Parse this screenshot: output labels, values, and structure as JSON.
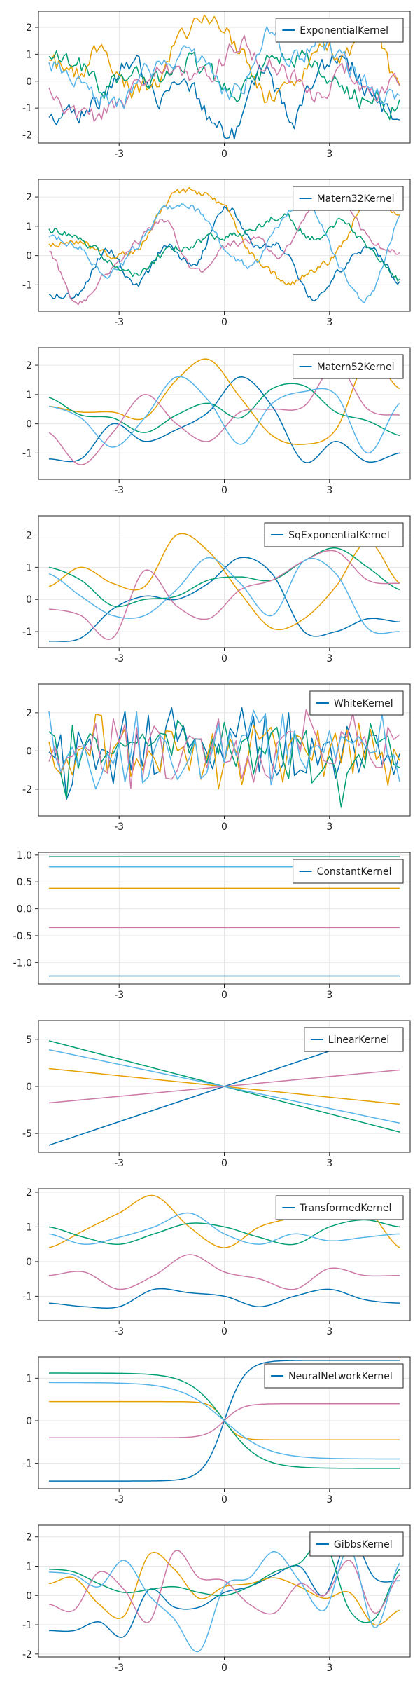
{
  "colors": [
    "#0072B2",
    "#E69F00",
    "#009E73",
    "#CC79A7",
    "#56B4E9"
  ],
  "chart_data": [
    {
      "type": "line",
      "legend": [
        "ExponentialKernel"
      ],
      "legend_position": "top-right",
      "grid": true,
      "xlim": [
        -5.3,
        5.3
      ],
      "ylim": [
        -2.3,
        2.6
      ],
      "xticks": [
        -3,
        0,
        3
      ],
      "yticks": [
        -2,
        -1,
        0,
        1,
        2
      ],
      "yticklabels": [
        "-2",
        "-1",
        "0",
        "1",
        "2"
      ],
      "kind": "rough",
      "x_range": [
        -5,
        5
      ],
      "series": [
        {
          "color": "#0072B2",
          "anchors": [
            -1.3,
            -1.2,
            -0.5,
            0.8,
            -0.6,
            0.4,
            -1.5,
            -1.9,
            0.3,
            -1.5,
            0.4,
            0.7,
            -0.5,
            -1.2
          ],
          "noise": 0.35
        },
        {
          "color": "#E69F00",
          "anchors": [
            0.8,
            0.3,
            1.2,
            -0.2,
            0.1,
            1.8,
            2.2,
            1.2,
            -0.6,
            0.2,
            0.9,
            1.1,
            1.8,
            -0.6
          ],
          "noise": 0.35
        },
        {
          "color": "#009E73",
          "anchors": [
            0.9,
            0.6,
            -0.3,
            0.4,
            -0.2,
            0.8,
            0.2,
            -0.6,
            0.5,
            1.1,
            0.3,
            -0.4,
            -0.8,
            -1.0
          ],
          "noise": 0.35
        },
        {
          "color": "#CC79A7",
          "anchors": [
            -0.3,
            -1.5,
            -1.2,
            -0.5,
            0.4,
            -0.1,
            0.3,
            1.2,
            0.8,
            0.0,
            -0.5,
            0.4,
            -0.6,
            0.0
          ],
          "noise": 0.35
        },
        {
          "color": "#56B4E9",
          "anchors": [
            0.6,
            -0.2,
            -0.8,
            -0.5,
            0.6,
            1.0,
            0.3,
            -0.3,
            1.6,
            0.8,
            1.2,
            0.5,
            -0.2,
            -0.7
          ],
          "noise": 0.35
        }
      ]
    },
    {
      "type": "line",
      "legend": [
        "Matern32Kernel"
      ],
      "legend_position": "top-right",
      "grid": true,
      "xlim": [
        -5.3,
        5.3
      ],
      "ylim": [
        -1.9,
        2.6
      ],
      "xticks": [
        -3,
        0,
        3
      ],
      "yticks": [
        -1,
        0,
        1,
        2
      ],
      "yticklabels": [
        "-1",
        "0",
        "1",
        "2"
      ],
      "kind": "medium",
      "x_range": [
        -5,
        5
      ],
      "series": [
        {
          "color": "#0072B2",
          "anchors": [
            -1.3,
            -1.3,
            0.2,
            -1.0,
            0.3,
            -0.3,
            1.7,
            0.4,
            0.2,
            -1.5,
            -0.4,
            0.2,
            -0.9
          ],
          "noise": 0.12
        },
        {
          "color": "#E69F00",
          "anchors": [
            0.4,
            0.5,
            0.0,
            0.2,
            1.8,
            2.2,
            1.6,
            0.0,
            -0.8,
            -0.6,
            0.3,
            2.2,
            1.3
          ],
          "noise": 0.12
        },
        {
          "color": "#009E73",
          "anchors": [
            0.9,
            0.6,
            -0.1,
            -0.6,
            0.1,
            0.4,
            0.7,
            0.9,
            1.4,
            0.6,
            1.2,
            0.2,
            -0.8
          ],
          "noise": 0.12
        },
        {
          "color": "#CC79A7",
          "anchors": [
            0.1,
            -1.6,
            -0.5,
            0.4,
            1.1,
            -0.6,
            0.3,
            0.5,
            0.1,
            1.8,
            2.0,
            0.5,
            0.1
          ],
          "noise": 0.12
        },
        {
          "color": "#56B4E9",
          "anchors": [
            0.6,
            0.3,
            -0.6,
            0.3,
            1.6,
            1.6,
            0.3,
            -0.3,
            1.3,
            1.6,
            -0.5,
            -1.4,
            1.3
          ],
          "noise": 0.12
        }
      ]
    },
    {
      "type": "line",
      "legend": [
        "Matern52Kernel"
      ],
      "legend_position": "top-right",
      "grid": true,
      "xlim": [
        -5.3,
        5.3
      ],
      "ylim": [
        -1.9,
        2.6
      ],
      "xticks": [
        -3,
        0,
        3
      ],
      "yticks": [
        -1,
        0,
        1,
        2
      ],
      "yticklabels": [
        "-1",
        "0",
        "1",
        "2"
      ],
      "kind": "smooth",
      "x_range": [
        -5,
        5
      ],
      "series": [
        {
          "color": "#0072B2",
          "anchors": [
            -1.2,
            -1.2,
            0.0,
            -0.6,
            -0.2,
            0.4,
            1.6,
            0.6,
            -1.3,
            -0.6,
            -1.3,
            -1.0
          ],
          "noise": 0.0
        },
        {
          "color": "#E69F00",
          "anchors": [
            0.6,
            0.4,
            0.4,
            0.2,
            1.5,
            2.2,
            0.9,
            -0.4,
            -0.7,
            -0.2,
            2.2,
            1.2
          ],
          "noise": 0.0
        },
        {
          "color": "#009E73",
          "anchors": [
            0.9,
            0.3,
            0.2,
            -0.3,
            0.3,
            0.7,
            0.2,
            1.2,
            1.3,
            0.4,
            0.1,
            -0.4
          ],
          "noise": 0.0
        },
        {
          "color": "#CC79A7",
          "anchors": [
            -0.3,
            -1.4,
            -0.3,
            1.0,
            0.0,
            -0.6,
            0.4,
            0.5,
            0.6,
            2.0,
            0.5,
            0.3
          ],
          "noise": 0.0
        },
        {
          "color": "#56B4E9",
          "anchors": [
            0.6,
            0.2,
            -0.8,
            0.2,
            1.6,
            0.8,
            -0.7,
            0.7,
            1.1,
            1.0,
            -1.0,
            0.7
          ],
          "noise": 0.0
        }
      ]
    },
    {
      "type": "line",
      "legend": [
        "SqExponentialKernel"
      ],
      "legend_position": "top-right",
      "grid": true,
      "xlim": [
        -5.3,
        5.3
      ],
      "ylim": [
        -1.5,
        2.6
      ],
      "xticks": [
        -3,
        0,
        3
      ],
      "yticks": [
        -1,
        0,
        1,
        2
      ],
      "yticklabels": [
        "-1",
        "0",
        "1",
        "2"
      ],
      "kind": "smooth",
      "x_range": [
        -5,
        5
      ],
      "series": [
        {
          "color": "#0072B2",
          "anchors": [
            -1.3,
            -1.2,
            -0.3,
            0.1,
            0.0,
            0.5,
            1.3,
            0.8,
            -1.0,
            -1.0,
            -0.6,
            -0.7
          ],
          "noise": 0.0
        },
        {
          "color": "#E69F00",
          "anchors": [
            0.4,
            1.0,
            0.5,
            0.4,
            2.0,
            1.5,
            0.2,
            -0.9,
            -0.6,
            0.4,
            1.8,
            0.5
          ],
          "noise": 0.0
        },
        {
          "color": "#009E73",
          "anchors": [
            1.0,
            0.6,
            -0.2,
            0.0,
            0.1,
            0.6,
            0.7,
            0.6,
            1.2,
            1.6,
            1.0,
            0.3
          ],
          "noise": 0.0
        },
        {
          "color": "#CC79A7",
          "anchors": [
            -0.3,
            -0.5,
            -1.2,
            0.9,
            -0.2,
            -0.6,
            0.3,
            0.6,
            1.2,
            1.5,
            0.6,
            0.5
          ],
          "noise": 0.0
        },
        {
          "color": "#56B4E9",
          "anchors": [
            0.8,
            0.1,
            -0.5,
            -0.5,
            0.3,
            1.3,
            0.5,
            -0.5,
            1.2,
            0.8,
            -0.9,
            -1.0
          ],
          "noise": 0.0
        }
      ]
    },
    {
      "type": "line",
      "legend": [
        "WhiteKernel"
      ],
      "legend_position": "top-right",
      "grid": true,
      "xlim": [
        -5.3,
        5.3
      ],
      "ylim": [
        -3.4,
        3.5
      ],
      "xticks": [
        -3,
        0,
        3
      ],
      "yticks": [
        -2,
        0,
        2
      ],
      "yticklabels": [
        "-2",
        "0",
        "2"
      ],
      "kind": "white",
      "x_range": [
        -5,
        5
      ],
      "points": 60,
      "series": [
        {
          "color": "#0072B2",
          "amplitude": 1.0
        },
        {
          "color": "#E69F00",
          "amplitude": 1.0
        },
        {
          "color": "#009E73",
          "amplitude": 1.0
        },
        {
          "color": "#CC79A7",
          "amplitude": 1.0
        },
        {
          "color": "#56B4E9",
          "amplitude": 1.0
        }
      ]
    },
    {
      "type": "line",
      "legend": [
        "ConstantKernel"
      ],
      "legend_position": "top-right",
      "grid": true,
      "xlim": [
        -5.3,
        5.3
      ],
      "ylim": [
        -1.4,
        1.05
      ],
      "xticks": [
        -3,
        0,
        3
      ],
      "yticks": [
        -1.0,
        -0.5,
        0.0,
        0.5,
        1.0
      ],
      "yticklabels": [
        "-1.0",
        "-0.5",
        "0.0",
        "0.5",
        "1.0"
      ],
      "kind": "constant",
      "x_range": [
        -5,
        5
      ],
      "series": [
        {
          "color": "#0072B2",
          "value": -1.25
        },
        {
          "color": "#E69F00",
          "value": 0.38
        },
        {
          "color": "#009E73",
          "value": 0.97
        },
        {
          "color": "#CC79A7",
          "value": -0.35
        },
        {
          "color": "#56B4E9",
          "value": 0.78
        }
      ]
    },
    {
      "type": "line",
      "legend": [
        "LinearKernel"
      ],
      "legend_position": "top-right",
      "grid": true,
      "xlim": [
        -5.3,
        5.3
      ],
      "ylim": [
        -7.0,
        7.0
      ],
      "xticks": [
        -3,
        0,
        3
      ],
      "yticks": [
        -5,
        0,
        5
      ],
      "yticklabels": [
        "-5",
        "0",
        "5"
      ],
      "kind": "linear",
      "x_range": [
        -5,
        5
      ],
      "series": [
        {
          "color": "#0072B2",
          "slope": 1.25
        },
        {
          "color": "#E69F00",
          "slope": -0.38
        },
        {
          "color": "#009E73",
          "slope": -0.97
        },
        {
          "color": "#CC79A7",
          "slope": 0.35
        },
        {
          "color": "#56B4E9",
          "slope": -0.78
        }
      ]
    },
    {
      "type": "line",
      "legend": [
        "TransformedKernel"
      ],
      "legend_position": "top-right",
      "grid": true,
      "xlim": [
        -5.3,
        5.3
      ],
      "ylim": [
        -1.7,
        2.1
      ],
      "xticks": [
        -3,
        0,
        3
      ],
      "yticks": [
        -1,
        0,
        1,
        2
      ],
      "yticklabels": [
        "-1",
        "0",
        "1",
        "2"
      ],
      "kind": "smooth",
      "x_range": [
        -5,
        5
      ],
      "series": [
        {
          "color": "#0072B2",
          "anchors": [
            -1.2,
            -1.3,
            -1.3,
            -0.8,
            -0.9,
            -1.0,
            -1.3,
            -1.0,
            -0.8,
            -1.1,
            -1.2
          ],
          "noise": 0.0
        },
        {
          "color": "#E69F00",
          "anchors": [
            0.4,
            0.9,
            1.4,
            1.9,
            1.0,
            0.4,
            1.0,
            1.3,
            1.8,
            1.6,
            0.4
          ],
          "noise": 0.0
        },
        {
          "color": "#009E73",
          "anchors": [
            1.0,
            0.7,
            0.5,
            0.8,
            1.1,
            1.0,
            0.7,
            0.5,
            1.0,
            1.2,
            1.0
          ],
          "noise": 0.0
        },
        {
          "color": "#CC79A7",
          "anchors": [
            -0.4,
            -0.3,
            -0.8,
            -0.4,
            0.2,
            -0.3,
            -0.5,
            -0.8,
            -0.2,
            -0.4,
            -0.4
          ],
          "noise": 0.0
        },
        {
          "color": "#56B4E9",
          "anchors": [
            0.8,
            0.5,
            0.7,
            1.0,
            1.4,
            0.8,
            0.5,
            0.8,
            0.6,
            0.7,
            0.8
          ],
          "noise": 0.0
        }
      ]
    },
    {
      "type": "line",
      "legend": [
        "NeuralNetworkKernel"
      ],
      "legend_position": "top-right",
      "grid": true,
      "xlim": [
        -5.3,
        5.3
      ],
      "ylim": [
        -1.6,
        1.5
      ],
      "xticks": [
        -3,
        0,
        3
      ],
      "yticks": [
        -1,
        0,
        1
      ],
      "yticklabels": [
        "-1",
        "0",
        "1"
      ],
      "kind": "sigmoid",
      "x_range": [
        -5,
        5
      ],
      "series": [
        {
          "color": "#0072B2",
          "a": 1.42,
          "k": 1.7
        },
        {
          "color": "#E69F00",
          "a": -0.45,
          "k": 2.6
        },
        {
          "color": "#009E73",
          "a": -1.12,
          "k": 1.0
        },
        {
          "color": "#CC79A7",
          "a": 0.4,
          "k": 2.0
        },
        {
          "color": "#56B4E9",
          "a": -0.9,
          "k": 0.8
        }
      ]
    },
    {
      "type": "line",
      "legend": [
        "GibbsKernel"
      ],
      "legend_position": "top-right",
      "grid": true,
      "xlim": [
        -5.3,
        5.3
      ],
      "ylim": [
        -2.1,
        2.4
      ],
      "xticks": [
        -3,
        0,
        3
      ],
      "yticks": [
        -2,
        -1,
        0,
        1,
        2
      ],
      "yticklabels": [
        "-2",
        "-1",
        "0",
        "1",
        "2"
      ],
      "kind": "smooth",
      "x_range": [
        -5,
        5
      ],
      "series": [
        {
          "color": "#0072B2",
          "anchors": [
            -1.2,
            -1.2,
            -0.9,
            -1.4,
            0.2,
            -0.4,
            -0.4,
            0.1,
            0.3,
            0.7,
            1.0,
            0.0,
            2.0,
            0.6,
            0.5
          ],
          "noise": 0.0
        },
        {
          "color": "#E69F00",
          "anchors": [
            0.4,
            0.6,
            -0.3,
            -0.7,
            1.4,
            0.9,
            -0.1,
            0.3,
            0.4,
            0.6,
            0.3,
            -0.1,
            0.1,
            -1.0,
            -0.5
          ],
          "noise": 0.0
        },
        {
          "color": "#009E73",
          "anchors": [
            0.9,
            0.8,
            0.4,
            0.1,
            0.2,
            0.3,
            0.1,
            0.0,
            0.3,
            0.8,
            1.1,
            1.8,
            -0.5,
            -0.8,
            0.9
          ],
          "noise": 0.0
        },
        {
          "color": "#CC79A7",
          "anchors": [
            -0.3,
            -0.5,
            0.8,
            0.2,
            -0.9,
            1.5,
            0.6,
            0.5,
            -0.3,
            -0.6,
            0.4,
            0.0,
            1.2,
            -0.6,
            0.7
          ],
          "noise": 0.0
        },
        {
          "color": "#56B4E9",
          "anchors": [
            0.8,
            0.7,
            0.3,
            1.2,
            0.0,
            -0.8,
            -1.9,
            0.3,
            0.6,
            1.5,
            0.5,
            -0.5,
            1.6,
            -1.1,
            1.1
          ],
          "noise": 0.0
        }
      ]
    }
  ]
}
